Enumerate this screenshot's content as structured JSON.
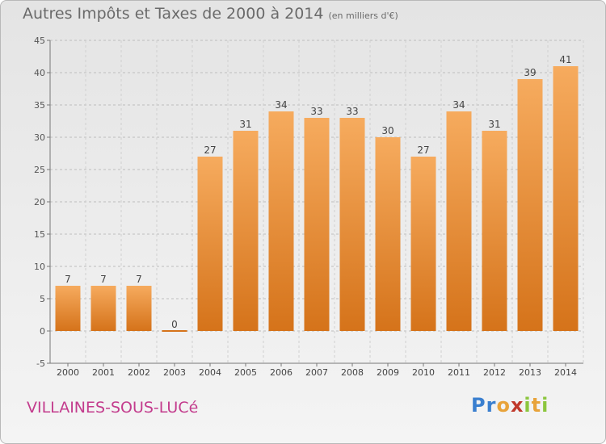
{
  "title": "Autres Impôts et Taxes de 2000 à 2014",
  "unit": "(en milliers d'€)",
  "commune": "VILLAINES-SOUS-LUCé",
  "logo": {
    "letters": [
      "P",
      "r",
      "o",
      "x",
      "i",
      "t",
      "i"
    ],
    "colors": [
      "#3a7fcf",
      "#3a7fcf",
      "#e8a33a",
      "#c0392b",
      "#8cc63e",
      "#e8a33a",
      "#8cc63e"
    ]
  },
  "colors": {
    "bar_light": "#f6ab5e",
    "bar_dark": "#d5731a",
    "title": "#6a6a6a",
    "commune": "#c33c8d"
  },
  "chart_data": {
    "type": "bar",
    "categories": [
      "2000",
      "2001",
      "2002",
      "2003",
      "2004",
      "2005",
      "2006",
      "2007",
      "2008",
      "2009",
      "2010",
      "2011",
      "2012",
      "2013",
      "2014"
    ],
    "values": [
      7,
      7,
      7,
      0,
      27,
      31,
      34,
      33,
      33,
      30,
      27,
      34,
      31,
      39,
      41
    ],
    "ylim": [
      -5,
      45
    ],
    "yticks": [
      -5,
      0,
      5,
      10,
      15,
      20,
      25,
      30,
      35,
      40,
      45
    ],
    "grid": true
  }
}
